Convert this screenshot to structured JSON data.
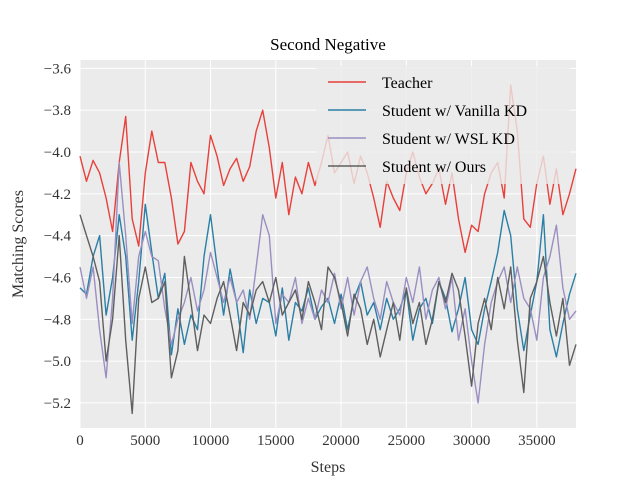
{
  "chart_data": {
    "type": "line",
    "title": "Second Negative",
    "xlabel": "Steps",
    "ylabel": "Matching Scores",
    "xlim": [
      0,
      38000
    ],
    "ylim": [
      -5.32,
      -3.56
    ],
    "xticks": [
      0,
      5000,
      10000,
      15000,
      20000,
      25000,
      30000,
      35000
    ],
    "yticks": [
      -3.6,
      -3.8,
      -4.0,
      -4.2,
      -4.4,
      -4.6,
      -4.8,
      -5.0,
      -5.2
    ],
    "grid": true,
    "legend_position": "top-right",
    "series": [
      {
        "name": "Teacher",
        "color": "#e8403b",
        "x": [
          0,
          500,
          1000,
          1500,
          2000,
          2500,
          3000,
          3500,
          4000,
          4500,
          5000,
          5500,
          6000,
          6500,
          7000,
          7500,
          8000,
          8500,
          9000,
          9500,
          10000,
          10500,
          11000,
          11500,
          12000,
          12500,
          13000,
          13500,
          14000,
          14500,
          15000,
          15500,
          16000,
          16500,
          17000,
          17500,
          18000,
          18500,
          19000,
          19500,
          20000,
          20500,
          21000,
          21500,
          22000,
          22500,
          23000,
          23500,
          24000,
          24500,
          25000,
          25500,
          26000,
          26500,
          27000,
          27500,
          28000,
          28500,
          29000,
          29500,
          30000,
          30500,
          31000,
          31500,
          32000,
          32500,
          33000,
          33500,
          34000,
          34500,
          35000,
          35500,
          36000,
          36500,
          37000,
          37500,
          38000
        ],
        "values": [
          -4.02,
          -4.14,
          -4.04,
          -4.1,
          -4.22,
          -4.38,
          -4.05,
          -3.83,
          -4.32,
          -4.45,
          -4.1,
          -3.9,
          -4.05,
          -4.05,
          -4.22,
          -4.44,
          -4.38,
          -4.05,
          -4.14,
          -4.2,
          -3.92,
          -4.02,
          -4.16,
          -4.08,
          -4.03,
          -4.14,
          -4.07,
          -3.9,
          -3.8,
          -3.98,
          -4.22,
          -4.05,
          -4.3,
          -4.12,
          -4.2,
          -4.05,
          -4.16,
          -4.05,
          -3.92,
          -4.1,
          -4.05,
          -4.0,
          -4.15,
          -4.02,
          -4.1,
          -4.22,
          -4.36,
          -4.14,
          -4.22,
          -4.28,
          -4.1,
          -4.0,
          -4.12,
          -4.2,
          -4.15,
          -4.08,
          -4.25,
          -4.1,
          -4.32,
          -4.48,
          -4.35,
          -4.38,
          -4.2,
          -4.1,
          -4.05,
          -4.22,
          -3.68,
          -3.9,
          -4.32,
          -4.36,
          -4.15,
          -4.02,
          -4.25,
          -4.08,
          -4.3,
          -4.2,
          -4.08
        ]
      },
      {
        "name": "Student w/ Vanilla KD",
        "color": "#2a7fa6",
        "x": [
          0,
          500,
          1000,
          1500,
          2000,
          2500,
          3000,
          3500,
          4000,
          4500,
          5000,
          5500,
          6000,
          6500,
          7000,
          7500,
          8000,
          8500,
          9000,
          9500,
          10000,
          10500,
          11000,
          11500,
          12000,
          12500,
          13000,
          13500,
          14000,
          14500,
          15000,
          15500,
          16000,
          16500,
          17000,
          17500,
          18000,
          18500,
          19000,
          19500,
          20000,
          20500,
          21000,
          21500,
          22000,
          22500,
          23000,
          23500,
          24000,
          24500,
          25000,
          25500,
          26000,
          26500,
          27000,
          27500,
          28000,
          28500,
          29000,
          29500,
          30000,
          30500,
          31000,
          31500,
          32000,
          32500,
          33000,
          33500,
          34000,
          34500,
          35000,
          35500,
          36000,
          36500,
          37000,
          37500,
          38000
        ],
        "values": [
          -4.65,
          -4.68,
          -4.5,
          -4.4,
          -4.78,
          -4.6,
          -4.3,
          -4.5,
          -4.9,
          -4.62,
          -4.25,
          -4.48,
          -4.7,
          -4.58,
          -4.97,
          -4.75,
          -4.92,
          -4.78,
          -4.85,
          -4.5,
          -4.3,
          -4.55,
          -4.78,
          -4.56,
          -4.72,
          -4.96,
          -4.66,
          -4.82,
          -4.7,
          -4.72,
          -4.88,
          -4.65,
          -4.9,
          -4.72,
          -4.76,
          -4.65,
          -4.8,
          -4.74,
          -4.7,
          -4.82,
          -4.68,
          -4.85,
          -4.7,
          -4.62,
          -4.78,
          -4.72,
          -4.85,
          -4.7,
          -4.8,
          -4.75,
          -4.66,
          -4.9,
          -4.75,
          -4.7,
          -4.82,
          -4.62,
          -4.7,
          -4.86,
          -4.75,
          -4.6,
          -4.85,
          -4.92,
          -4.75,
          -4.62,
          -4.48,
          -4.28,
          -4.4,
          -4.75,
          -4.95,
          -4.78,
          -4.62,
          -4.3,
          -4.85,
          -4.98,
          -4.82,
          -4.68,
          -4.58
        ]
      },
      {
        "name": "Student w/ WSL KD",
        "color": "#9b8fc2",
        "x": [
          0,
          500,
          1000,
          1500,
          2000,
          2500,
          3000,
          3500,
          4000,
          4500,
          5000,
          5500,
          6000,
          6500,
          7000,
          7500,
          8000,
          8500,
          9000,
          9500,
          10000,
          10500,
          11000,
          11500,
          12000,
          12500,
          13000,
          13500,
          14000,
          14500,
          15000,
          15500,
          16000,
          16500,
          17000,
          17500,
          18000,
          18500,
          19000,
          19500,
          20000,
          20500,
          21000,
          21500,
          22000,
          22500,
          23000,
          23500,
          24000,
          24500,
          25000,
          25500,
          26000,
          26500,
          27000,
          27500,
          28000,
          28500,
          29000,
          29500,
          30000,
          30500,
          31000,
          31500,
          32000,
          32500,
          33000,
          33500,
          34000,
          34500,
          35000,
          35500,
          36000,
          36500,
          37000,
          37500,
          38000
        ],
        "values": [
          -4.55,
          -4.7,
          -4.55,
          -4.85,
          -5.08,
          -4.7,
          -4.05,
          -4.4,
          -4.82,
          -4.5,
          -4.38,
          -4.5,
          -4.52,
          -4.75,
          -4.92,
          -4.8,
          -4.72,
          -4.6,
          -4.76,
          -4.66,
          -4.48,
          -4.6,
          -4.72,
          -4.6,
          -4.72,
          -4.66,
          -4.8,
          -4.55,
          -4.3,
          -4.4,
          -4.82,
          -4.68,
          -4.72,
          -4.6,
          -4.82,
          -4.7,
          -4.8,
          -4.66,
          -4.72,
          -4.58,
          -4.75,
          -4.6,
          -4.78,
          -4.62,
          -4.55,
          -4.7,
          -4.8,
          -4.62,
          -4.72,
          -4.78,
          -4.6,
          -4.72,
          -4.55,
          -4.8,
          -4.66,
          -4.6,
          -4.75,
          -4.6,
          -4.9,
          -4.75,
          -5.0,
          -5.2,
          -4.92,
          -4.72,
          -4.62,
          -4.55,
          -4.72,
          -4.55,
          -4.7,
          -4.75,
          -4.9,
          -4.6,
          -4.5,
          -4.35,
          -4.65,
          -4.8,
          -4.76
        ]
      },
      {
        "name": "Student w/ Ours",
        "color": "#5f5f5f",
        "x": [
          0,
          500,
          1000,
          1500,
          2000,
          2500,
          3000,
          3500,
          4000,
          4500,
          5000,
          5500,
          6000,
          6500,
          7000,
          7500,
          8000,
          8500,
          9000,
          9500,
          10000,
          10500,
          11000,
          11500,
          12000,
          12500,
          13000,
          13500,
          14000,
          14500,
          15000,
          15500,
          16000,
          16500,
          17000,
          17500,
          18000,
          18500,
          19000,
          19500,
          20000,
          20500,
          21000,
          21500,
          22000,
          22500,
          23000,
          23500,
          24000,
          24500,
          25000,
          25500,
          26000,
          26500,
          27000,
          27500,
          28000,
          28500,
          29000,
          29500,
          30000,
          30500,
          31000,
          31500,
          32000,
          32500,
          33000,
          33500,
          34000,
          34500,
          35000,
          35500,
          36000,
          36500,
          37000,
          37500,
          38000
        ],
        "values": [
          -4.3,
          -4.4,
          -4.5,
          -4.62,
          -5.0,
          -4.8,
          -4.4,
          -4.9,
          -5.25,
          -4.7,
          -4.55,
          -4.72,
          -4.7,
          -4.62,
          -5.08,
          -4.95,
          -4.5,
          -4.72,
          -4.95,
          -4.78,
          -4.82,
          -4.7,
          -4.62,
          -4.78,
          -4.95,
          -4.72,
          -4.78,
          -4.66,
          -4.62,
          -4.72,
          -4.6,
          -4.78,
          -4.72,
          -4.66,
          -4.8,
          -4.62,
          -4.72,
          -4.85,
          -4.55,
          -4.6,
          -4.72,
          -4.88,
          -4.68,
          -4.75,
          -4.92,
          -4.8,
          -4.98,
          -4.85,
          -4.72,
          -4.9,
          -4.65,
          -4.82,
          -4.72,
          -4.92,
          -4.8,
          -4.62,
          -4.72,
          -4.58,
          -4.66,
          -4.88,
          -5.12,
          -4.82,
          -4.7,
          -4.85,
          -4.6,
          -4.75,
          -4.55,
          -4.9,
          -5.15,
          -4.7,
          -4.62,
          -4.5,
          -4.72,
          -4.88,
          -4.7,
          -5.02,
          -4.92
        ]
      }
    ]
  }
}
